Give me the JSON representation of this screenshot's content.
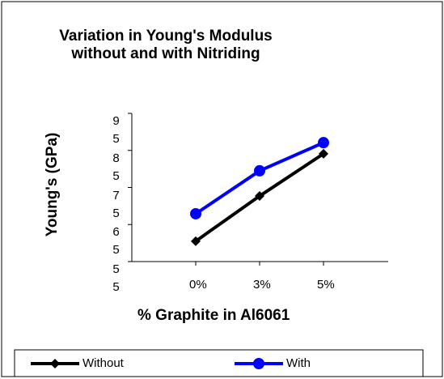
{
  "chart_data": {
    "type": "line",
    "title": "Variation in Young's Modulus without and with Nitriding",
    "x_label": "% Graphite in Al6061",
    "y_label": "Young's (GPa)",
    "categories": [
      "0%",
      "3%",
      "5%"
    ],
    "series": [
      {
        "name": "Without",
        "color": "#000000",
        "marker": "diamond",
        "values": [
          60.5,
          72.7,
          84.1
        ]
      },
      {
        "name": "With",
        "color": "#0000ff",
        "marker": "circle",
        "values": [
          67.9,
          79.5,
          87.1
        ]
      }
    ],
    "ylim": [
      55,
      95
    ],
    "yticks": [
      55,
      65,
      75,
      85,
      95
    ],
    "grid": false,
    "legend": "bottom"
  }
}
